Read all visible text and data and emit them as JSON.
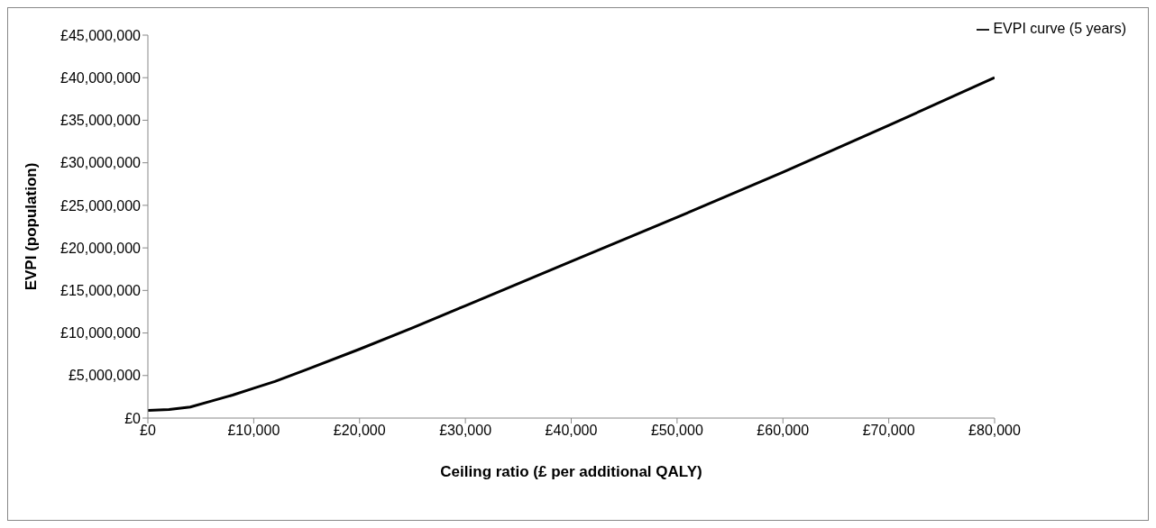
{
  "chart_data": {
    "type": "line",
    "xlabel": "Ceiling ratio (£ per additional QALY)",
    "ylabel": "EVPI (population)",
    "x": [
      0,
      2000,
      4000,
      6000,
      8000,
      10000,
      12000,
      15000,
      20000,
      25000,
      30000,
      40000,
      50000,
      60000,
      70000,
      80000
    ],
    "series": [
      {
        "name": "EVPI curve (5 years)",
        "color": "#000000",
        "values": [
          900000,
          1000000,
          1300000,
          2000000,
          2700000,
          3500000,
          4300000,
          5700000,
          8100000,
          10600000,
          13200000,
          18400000,
          23600000,
          28900000,
          34400000,
          40000000
        ]
      }
    ],
    "xlim": [
      0,
      80000
    ],
    "xticks": [
      {
        "value": 0,
        "label": "£0"
      },
      {
        "value": 10000,
        "label": "£10,000"
      },
      {
        "value": 20000,
        "label": "£20,000"
      },
      {
        "value": 30000,
        "label": "£30,000"
      },
      {
        "value": 40000,
        "label": "£40,000"
      },
      {
        "value": 50000,
        "label": "£50,000"
      },
      {
        "value": 60000,
        "label": "£60,000"
      },
      {
        "value": 70000,
        "label": "£70,000"
      },
      {
        "value": 80000,
        "label": "£80,000"
      }
    ],
    "ylim": [
      0,
      45000000
    ],
    "yticks": [
      {
        "value": 0,
        "label": "£0"
      },
      {
        "value": 5000000,
        "label": "£5,000,000"
      },
      {
        "value": 10000000,
        "label": "£10,000,000"
      },
      {
        "value": 15000000,
        "label": "£15,000,000"
      },
      {
        "value": 20000000,
        "label": "£20,000,000"
      },
      {
        "value": 25000000,
        "label": "£25,000,000"
      },
      {
        "value": 30000000,
        "label": "£30,000,000"
      },
      {
        "value": 35000000,
        "label": "£35,000,000"
      },
      {
        "value": 40000000,
        "label": "£40,000,000"
      },
      {
        "value": 45000000,
        "label": "£45,000,000"
      }
    ],
    "legend": "top right",
    "line_style": "solid"
  }
}
